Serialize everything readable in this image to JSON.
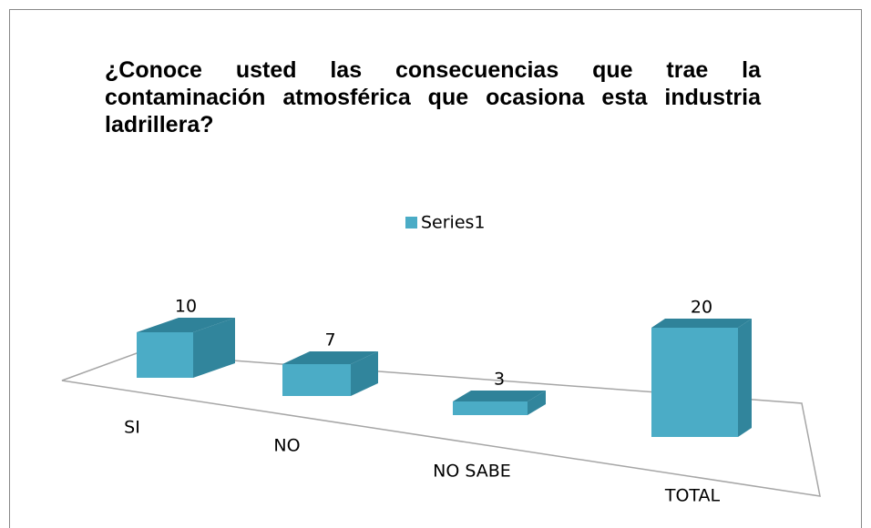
{
  "chart_data": {
    "type": "bar3d",
    "title": "¿Conoce usted las consecuencias que trae la contaminación atmosférica que ocasiona esta industria ladrillera?",
    "categories": [
      "SI",
      "NO",
      "NO SABE",
      "TOTAL"
    ],
    "series": [
      {
        "name": "Series1",
        "color": "#4bacc6",
        "values": [
          10,
          7,
          3,
          20
        ]
      }
    ],
    "legend": "top"
  }
}
